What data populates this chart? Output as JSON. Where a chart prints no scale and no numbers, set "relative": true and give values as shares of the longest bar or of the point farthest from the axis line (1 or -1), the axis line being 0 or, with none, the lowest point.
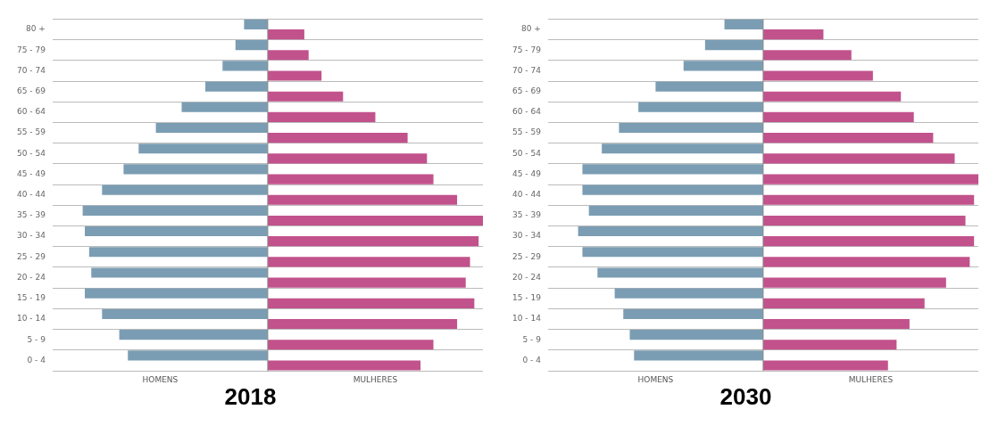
{
  "chart_data": [
    {
      "type": "bar",
      "title": "2018",
      "orientation": "horizontal",
      "relative": true,
      "grid": "y",
      "legend": false,
      "categories": [
        "80 +",
        "75 - 79",
        "70 - 74",
        "65 - 69",
        "60 - 64",
        "55 - 59",
        "50 - 54",
        "45 - 49",
        "40 - 44",
        "35 - 39",
        "30 - 34",
        "25 - 29",
        "20 - 24",
        "15 - 19",
        "10 - 14",
        "5 - 9",
        "0 - 4"
      ],
      "series": [
        {
          "name": "HOMENS",
          "color": "#7b9db3",
          "values": [
            -0.11,
            -0.15,
            -0.21,
            -0.29,
            -0.4,
            -0.52,
            -0.6,
            -0.67,
            -0.77,
            -0.86,
            -0.85,
            -0.83,
            -0.82,
            -0.85,
            -0.77,
            -0.69,
            -0.65
          ]
        },
        {
          "name": "MULHERES",
          "color": "#c2528c",
          "values": [
            0.17,
            0.19,
            0.25,
            0.35,
            0.5,
            0.65,
            0.74,
            0.77,
            0.88,
            1,
            0.98,
            0.94,
            0.92,
            0.96,
            0.88,
            0.77,
            0.71
          ]
        }
      ]
    },
    {
      "type": "bar",
      "title": "2030",
      "orientation": "horizontal",
      "relative": true,
      "grid": "y",
      "legend": false,
      "categories": [
        "80 +",
        "75 - 79",
        "70 - 74",
        "65 - 69",
        "60 - 64",
        "55 - 59",
        "50 - 54",
        "45 - 49",
        "40 - 44",
        "35 - 39",
        "30 - 34",
        "25 - 29",
        "20 - 24",
        "15 - 19",
        "10 - 14",
        "5 - 9",
        "0 - 4"
      ],
      "series": [
        {
          "name": "HOMENS",
          "color": "#7b9db3",
          "values": [
            -0.18,
            -0.27,
            -0.37,
            -0.5,
            -0.58,
            -0.67,
            -0.75,
            -0.84,
            -0.84,
            -0.81,
            -0.86,
            -0.84,
            -0.77,
            -0.69,
            -0.65,
            -0.62,
            -0.6
          ]
        },
        {
          "name": "MULHERES",
          "color": "#c2528c",
          "values": [
            0.28,
            0.41,
            0.51,
            0.64,
            0.7,
            0.79,
            0.89,
            1,
            0.98,
            0.94,
            0.98,
            0.96,
            0.85,
            0.75,
            0.68,
            0.62,
            0.58
          ]
        }
      ]
    }
  ]
}
